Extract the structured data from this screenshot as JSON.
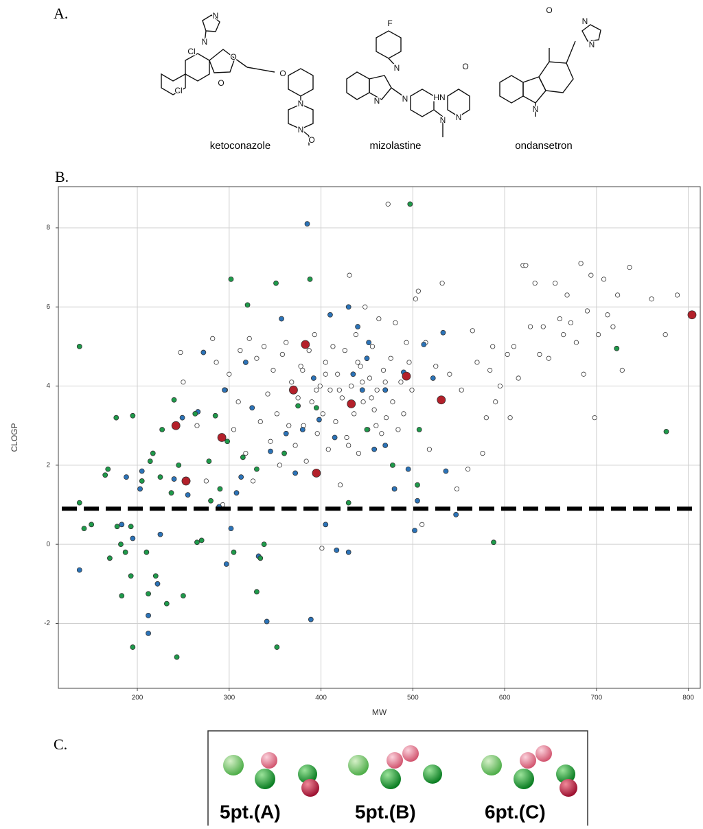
{
  "panels": {
    "a": "A.",
    "b": "B.",
    "c": "C."
  },
  "structures": [
    {
      "name": "ketoconazole",
      "atoms": [
        "N",
        "N",
        "Cl",
        "Cl",
        "O",
        "O",
        "O",
        "N",
        "N",
        "O"
      ]
    },
    {
      "name": "mizolastine",
      "atoms": [
        "F",
        "N",
        "N",
        "N",
        "HN",
        "O",
        "N",
        "N"
      ]
    },
    {
      "name": "ondansetron",
      "atoms": [
        "O",
        "N",
        "N",
        "N"
      ]
    }
  ],
  "chart_data": {
    "type": "scatter",
    "xlabel": "MW",
    "ylabel": "CLOGP",
    "xlim": [
      114,
      813
    ],
    "ylim": [
      -3.64,
      9.04
    ],
    "xticks": [
      200,
      300,
      400,
      500,
      600,
      700,
      800
    ],
    "yticks": [
      8,
      6,
      4,
      2,
      0,
      -2
    ],
    "grid": true,
    "hline": 0.9,
    "series": [
      {
        "color": "#ffffff",
        "size": 3.2,
        "x": [
          247,
          250,
          265,
          275,
          282,
          286,
          293,
          296,
          300,
          305,
          310,
          312,
          318,
          322,
          326,
          330,
          334,
          338,
          342,
          345,
          348,
          352,
          355,
          358,
          362,
          365,
          368,
          372,
          375,
          378,
          381,
          384,
          387,
          390,
          393,
          396,
          399,
          401,
          402,
          405,
          408,
          410,
          413,
          416,
          418,
          421,
          423,
          426,
          428,
          431,
          433,
          436,
          438,
          441,
          443,
          446,
          448,
          451,
          453,
          456,
          458,
          461,
          463,
          466,
          468,
          471,
          473,
          476,
          478,
          481,
          484,
          487,
          490,
          493,
          496,
          499,
          503,
          506,
          510,
          514,
          518,
          525,
          532,
          540,
          548,
          553,
          560,
          565,
          570,
          576,
          580,
          584,
          587,
          590,
          595,
          603,
          606,
          610,
          615,
          620,
          623,
          628,
          633,
          638,
          642,
          648,
          655,
          660,
          664,
          668,
          672,
          678,
          683,
          686,
          690,
          694,
          698,
          702,
          708,
          712,
          718,
          723,
          728,
          736,
          760,
          775,
          788,
          405,
          420,
          445,
          460,
          395,
          380,
          430,
          440,
          455,
          470
        ],
        "values": [
          4.85,
          4.1,
          3.0,
          1.6,
          5.2,
          4.6,
          1.0,
          3.9,
          4.3,
          2.9,
          3.6,
          4.9,
          2.3,
          5.2,
          1.6,
          4.7,
          3.1,
          5.0,
          3.8,
          2.6,
          4.4,
          3.3,
          2.0,
          4.8,
          5.1,
          3.0,
          4.1,
          2.5,
          3.7,
          4.5,
          3.0,
          2.1,
          4.9,
          3.6,
          5.3,
          2.8,
          4.0,
          -0.1,
          3.3,
          4.6,
          2.4,
          3.9,
          5.0,
          3.1,
          4.3,
          1.5,
          3.7,
          4.9,
          2.7,
          6.8,
          4.0,
          3.3,
          5.3,
          2.3,
          4.5,
          3.6,
          6.0,
          2.9,
          4.2,
          5.0,
          3.4,
          3.9,
          5.7,
          2.8,
          4.4,
          3.2,
          8.6,
          4.7,
          3.6,
          5.6,
          2.9,
          4.1,
          3.3,
          5.1,
          4.6,
          3.9,
          6.2,
          6.4,
          0.5,
          5.1,
          2.4,
          4.5,
          6.6,
          4.3,
          1.4,
          3.9,
          1.9,
          5.4,
          4.6,
          2.3,
          3.2,
          4.4,
          5.0,
          3.6,
          4.0,
          4.8,
          3.2,
          5.0,
          4.2,
          7.05,
          7.05,
          5.5,
          6.6,
          4.8,
          5.5,
          4.7,
          6.6,
          5.7,
          5.3,
          6.3,
          5.6,
          5.1,
          7.1,
          4.3,
          5.9,
          6.8,
          3.2,
          5.3,
          6.7,
          5.8,
          5.5,
          6.3,
          4.4,
          7.0,
          6.2,
          5.3,
          6.3,
          4.3,
          3.9,
          4.1,
          3.0,
          3.9,
          4.4,
          2.5,
          4.6,
          3.7,
          4.1
        ]
      },
      {
        "color": "#2b73b8",
        "size": 3.5,
        "x": [
          137,
          183,
          188,
          195,
          203,
          205,
          212,
          212,
          222,
          225,
          240,
          249,
          255,
          266,
          272,
          289,
          295,
          297,
          302,
          308,
          313,
          318,
          325,
          332,
          341,
          345,
          357,
          362,
          372,
          385,
          389,
          392,
          398,
          405,
          410,
          417,
          430,
          435,
          440,
          445,
          452,
          458,
          470,
          480,
          490,
          495,
          502,
          505,
          512,
          522,
          533,
          536,
          547,
          430,
          415,
          380,
          470,
          450
        ],
        "values": [
          -0.65,
          0.5,
          1.7,
          0.15,
          1.4,
          1.85,
          -1.8,
          -2.25,
          -1.0,
          0.25,
          1.65,
          3.2,
          1.25,
          3.35,
          4.85,
          0.95,
          3.9,
          -0.5,
          0.4,
          1.3,
          1.7,
          4.6,
          3.45,
          -0.3,
          -1.95,
          2.35,
          5.7,
          2.8,
          1.8,
          8.1,
          -1.9,
          4.2,
          3.15,
          0.5,
          5.8,
          -0.15,
          6.0,
          4.3,
          5.5,
          3.9,
          5.1,
          2.4,
          2.5,
          1.4,
          4.35,
          1.9,
          0.35,
          1.1,
          5.05,
          4.2,
          5.35,
          1.85,
          0.75,
          -0.2,
          2.7,
          2.9,
          3.9,
          4.7
        ]
      },
      {
        "color": "#1e9a4a",
        "size": 3.5,
        "x": [
          137,
          137,
          142,
          150,
          165,
          168,
          170,
          177,
          178,
          182,
          183,
          187,
          193,
          193,
          195,
          195,
          205,
          210,
          212,
          214,
          217,
          220,
          225,
          227,
          232,
          237,
          240,
          243,
          245,
          250,
          255,
          263,
          265,
          270,
          278,
          285,
          290,
          298,
          302,
          305,
          320,
          330,
          334,
          338,
          351,
          352,
          360,
          375,
          388,
          395,
          430,
          450,
          478,
          497,
          505,
          507,
          588,
          722,
          776,
          330,
          280,
          315
        ],
        "values": [
          5.0,
          1.05,
          0.4,
          0.5,
          1.75,
          1.9,
          -0.35,
          3.2,
          0.45,
          0.0,
          -1.3,
          -0.2,
          0.45,
          -0.8,
          3.25,
          -2.6,
          1.6,
          -0.2,
          -1.25,
          2.1,
          2.3,
          -0.8,
          1.7,
          2.9,
          -1.5,
          1.3,
          3.65,
          -2.85,
          2.0,
          -1.3,
          1.6,
          3.3,
          0.05,
          0.1,
          2.1,
          3.25,
          1.4,
          2.6,
          6.7,
          -0.2,
          6.05,
          -1.2,
          -0.35,
          0.0,
          6.6,
          -2.6,
          2.3,
          3.5,
          6.7,
          3.45,
          1.05,
          2.9,
          2.0,
          8.6,
          1.5,
          2.9,
          0.05,
          4.95,
          2.85,
          1.9,
          1.1,
          2.2
        ]
      },
      {
        "color": "#b3202a",
        "size": 6,
        "x": [
          242,
          253,
          292,
          370,
          383,
          395,
          433,
          493,
          531,
          804
        ],
        "values": [
          3.0,
          1.6,
          2.7,
          3.9,
          5.05,
          1.8,
          3.55,
          4.25,
          3.65,
          5.8
        ]
      }
    ]
  },
  "pharmacophores": [
    "5pt.(A)",
    "5pt.(B)",
    "6pt.(C)"
  ]
}
